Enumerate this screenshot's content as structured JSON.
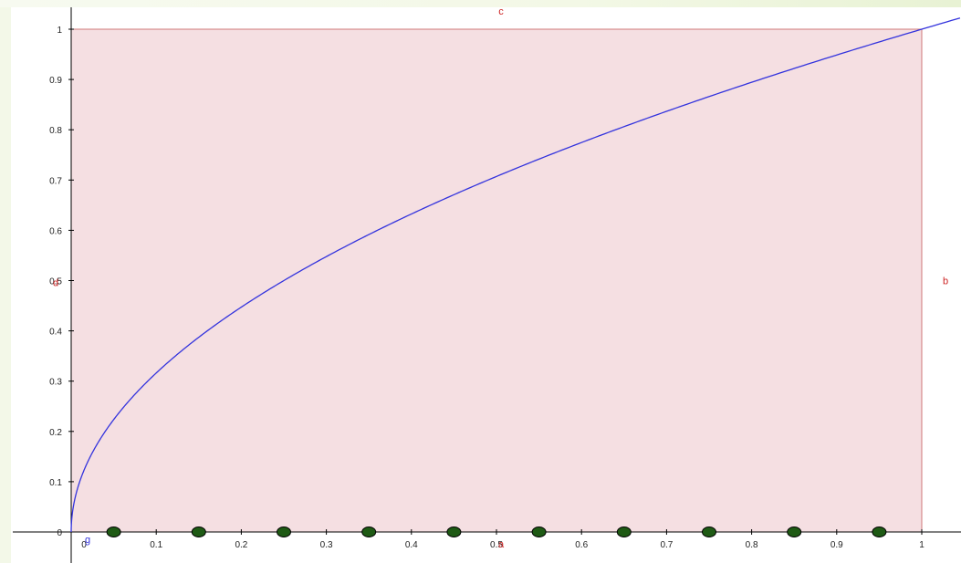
{
  "chart_data": {
    "type": "line",
    "title": "",
    "xlabel": "",
    "ylabel": "",
    "xlim": [
      -0.02,
      1.045
    ],
    "ylim": [
      -0.05,
      1.06
    ],
    "grid": false,
    "x_ticks": [
      0,
      0.1,
      0.2,
      0.3,
      0.4,
      0.5,
      0.6,
      0.7,
      0.8,
      0.9,
      1
    ],
    "x_tick_labels": [
      "0",
      "0.1",
      "0.2",
      "0.3",
      "0.4",
      "0.5",
      "0.6",
      "0.7",
      "0.8",
      "0.9",
      "1"
    ],
    "y_ticks": [
      0,
      0.1,
      0.2,
      0.3,
      0.4,
      0.5,
      0.6,
      0.7,
      0.8,
      0.9,
      1
    ],
    "y_tick_labels": [
      "0",
      "0.1",
      "0.2",
      "0.3",
      "0.4",
      "0.5",
      "0.6",
      "0.7",
      "0.8",
      "0.9",
      "1"
    ],
    "series": [
      {
        "function": "sqrt(x)",
        "x": [
          0,
          0.01,
          0.05,
          0.1,
          0.2,
          0.3,
          0.4,
          0.5,
          0.6,
          0.7,
          0.8,
          0.9,
          1.0,
          1.045
        ],
        "y": [
          0,
          0.1,
          0.224,
          0.316,
          0.447,
          0.548,
          0.632,
          0.707,
          0.775,
          0.837,
          0.894,
          0.949,
          1.0,
          1.022
        ],
        "color": "#3333dd"
      }
    ],
    "square": {
      "x": [
        0,
        1
      ],
      "y": [
        0,
        1
      ],
      "fill": "#f5dfe2",
      "stroke": "#d07a7a"
    },
    "points": {
      "x": [
        0.05,
        0.15,
        0.25,
        0.35,
        0.45,
        0.55,
        0.65,
        0.75,
        0.85,
        0.95
      ],
      "y": [
        0,
        0,
        0,
        0,
        0,
        0,
        0,
        0,
        0,
        0
      ],
      "color": "#1e5a14"
    },
    "annotations": [
      {
        "text": "a",
        "x": 0.5,
        "y": 0,
        "role": "bottom-side",
        "color": "#cc2222"
      },
      {
        "text": "b",
        "x": 1,
        "y": 0.5,
        "role": "right-side",
        "color": "#cc2222"
      },
      {
        "text": "c",
        "x": 0.5,
        "y": 1,
        "role": "top-side",
        "color": "#cc2222"
      },
      {
        "text": "d",
        "x": 0,
        "y": 0.5,
        "role": "left-side",
        "color": "#cc2222"
      },
      {
        "text": "g",
        "x": 0,
        "y": 0,
        "role": "curve",
        "color": "#3333dd"
      }
    ],
    "colors": {
      "axis": "#000000",
      "tick_label": "#222222",
      "background": "#ffffff"
    }
  }
}
